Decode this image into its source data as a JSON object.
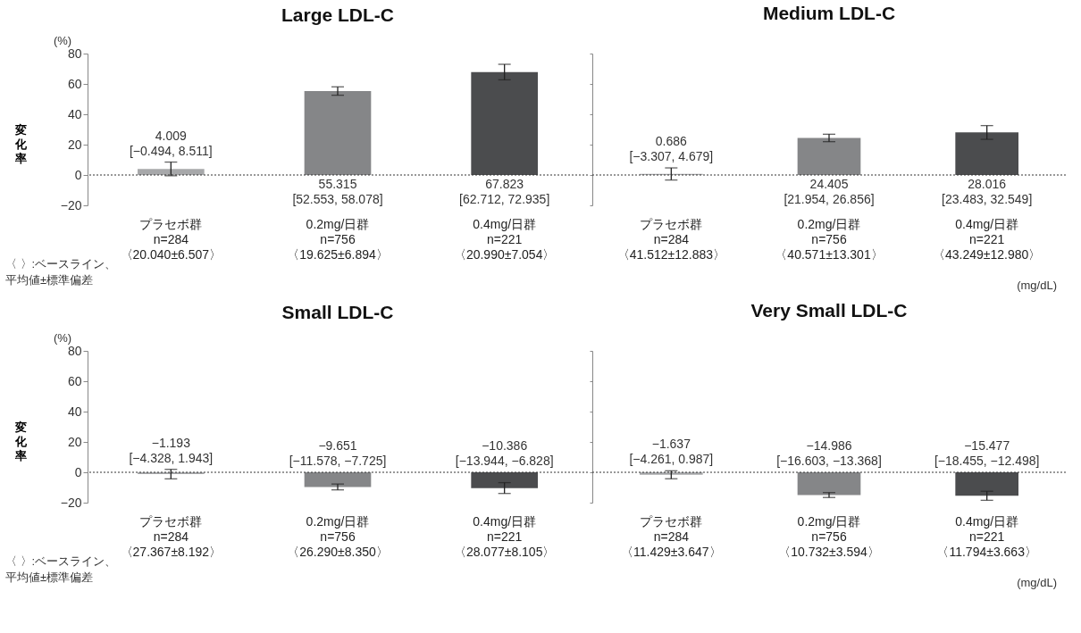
{
  "chart_data": [
    {
      "type": "bar",
      "title": "Large LDL-C",
      "ylabel": "変化率",
      "categories": [
        "プラセボ群\nn=284\n〈20.040±6.507〉",
        "0.2mg/日群\nn=756\n〈19.625±6.894〉",
        "0.4mg/日群\nn=221\n〈20.990±7.054〉"
      ],
      "values": [
        4.009,
        55.315,
        67.823
      ],
      "errors": [
        [
          -0.494,
          8.511
        ],
        [
          52.553,
          58.078
        ],
        [
          62.712,
          72.935
        ]
      ],
      "value_labels": [
        "4.009\n[−0.494, 8.511]",
        "55.315\n[52.553, 58.078]",
        "67.823\n[62.712, 72.935]"
      ],
      "colors": [
        "#a7a8aa",
        "#858688",
        "#4b4c4e"
      ],
      "ylim": [
        -20,
        80
      ],
      "yticks": [
        -20,
        0,
        20,
        40,
        60,
        80
      ],
      "ref_lines": [
        {
          "axis": "y",
          "value": 0,
          "line_style": "dotted",
          "color": "#333333"
        }
      ],
      "grid": false,
      "legend": false,
      "annotations": [
        "(%)",
        "〈 〉:ベースライン、",
        "平均値±標準偏差"
      ]
    },
    {
      "type": "bar",
      "title": "Medium LDL-C",
      "categories": [
        "プラセボ群\nn=284\n〈41.512±12.883〉",
        "0.2mg/日群\nn=756\n〈40.571±13.301〉",
        "0.4mg/日群\nn=221\n〈43.249±12.980〉"
      ],
      "values": [
        0.686,
        24.405,
        28.016
      ],
      "errors": [
        [
          -3.307,
          4.679
        ],
        [
          21.954,
          26.856
        ],
        [
          23.483,
          32.549
        ]
      ],
      "value_labels": [
        "0.686\n[−3.307, 4.679]",
        "24.405\n[21.954, 26.856]",
        "28.016\n[23.483, 32.549]"
      ],
      "colors": [
        "#a7a8aa",
        "#858688",
        "#4b4c4e"
      ],
      "ylim": [
        -20,
        80
      ],
      "yticks": [
        -20,
        0,
        20,
        40,
        60,
        80
      ],
      "tick_labels": "x",
      "ref_lines": [
        {
          "axis": "y",
          "value": 0,
          "line_style": "dotted",
          "color": "#333333"
        }
      ],
      "grid": false,
      "legend": false,
      "annotations": [
        "(mg/dL)"
      ]
    },
    {
      "type": "bar",
      "title": "Small LDL-C",
      "ylabel": "変化率",
      "categories": [
        "プラセボ群\nn=284\n〈27.367±8.192〉",
        "0.2mg/日群\nn=756\n〈26.290±8.350〉",
        "0.4mg/日群\nn=221\n〈28.077±8.105〉"
      ],
      "values": [
        -1.193,
        -9.651,
        -10.386
      ],
      "errors": [
        [
          -4.328,
          1.943
        ],
        [
          -11.578,
          -7.725
        ],
        [
          -13.944,
          -6.828
        ]
      ],
      "value_labels": [
        "−1.193\n[−4.328, 1.943]",
        "−9.651\n[−11.578, −7.725]",
        "−10.386\n[−13.944, −6.828]"
      ],
      "colors": [
        "#a7a8aa",
        "#858688",
        "#4b4c4e"
      ],
      "ylim": [
        -20,
        80
      ],
      "yticks": [
        -20,
        0,
        20,
        40,
        60,
        80
      ],
      "ref_lines": [
        {
          "axis": "y",
          "value": 0,
          "line_style": "dotted",
          "color": "#333333"
        }
      ],
      "grid": false,
      "legend": false,
      "annotations": [
        "(%)",
        "〈 〉:ベースライン、",
        "平均値±標準偏差"
      ]
    },
    {
      "type": "bar",
      "title": "Very Small LDL-C",
      "categories": [
        "プラセボ群\nn=284\n〈11.429±3.647〉",
        "0.2mg/日群\nn=756\n〈10.732±3.594〉",
        "0.4mg/日群\nn=221\n〈11.794±3.663〉"
      ],
      "values": [
        -1.637,
        -14.986,
        -15.477
      ],
      "errors": [
        [
          -4.261,
          0.987
        ],
        [
          -16.603,
          -13.368
        ],
        [
          -18.455,
          -12.498
        ]
      ],
      "value_labels": [
        "−1.637\n[−4.261, 0.987]",
        "−14.986\n[−16.603, −13.368]",
        "−15.477\n[−18.455, −12.498]"
      ],
      "colors": [
        "#a7a8aa",
        "#858688",
        "#4b4c4e"
      ],
      "ylim": [
        -20,
        80
      ],
      "yticks": [
        -20,
        0,
        20,
        40,
        60,
        80
      ],
      "tick_labels": "x",
      "ref_lines": [
        {
          "axis": "y",
          "value": 0,
          "line_style": "dotted",
          "color": "#333333"
        }
      ],
      "grid": false,
      "legend": false,
      "annotations": [
        "(mg/dL)"
      ]
    }
  ]
}
